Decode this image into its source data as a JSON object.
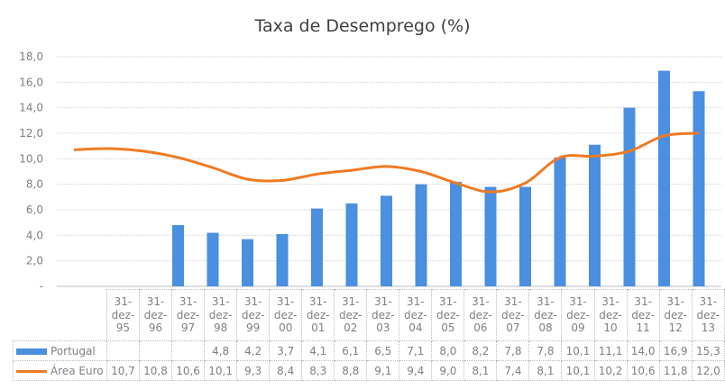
{
  "chart_data": {
    "type": "bar+line",
    "title": "Taxa de Desemprego (%)",
    "categories": [
      "31-dez-95",
      "31-dez-96",
      "31-dez-97",
      "31-dez-98",
      "31-dez-99",
      "31-dez-00",
      "31-dez-01",
      "31-dez-02",
      "31-dez-03",
      "31-dez-04",
      "31-dez-05",
      "31-dez-06",
      "31-dez-07",
      "31-dez-08",
      "31-dez-09",
      "31-dez-10",
      "31-dez-11",
      "31-dez-12",
      "31-dez-13"
    ],
    "series": [
      {
        "name": "Portugal",
        "type": "bar",
        "color": "#4a8fe0",
        "values": [
          null,
          null,
          null,
          4.8,
          4.2,
          3.7,
          4.1,
          6.1,
          6.5,
          7.1,
          8.0,
          8.2,
          7.8,
          7.8,
          10.1,
          11.1,
          14.0,
          16.9,
          15.3
        ],
        "labels": [
          "",
          "",
          "",
          "4,8",
          "4,2",
          "3,7",
          "4,1",
          "6,1",
          "6,5",
          "7,1",
          "8,0",
          "8,2",
          "7,8",
          "7,8",
          "10,1",
          "11,1",
          "14,0",
          "16,9",
          "15,3"
        ]
      },
      {
        "name": "Área Euro",
        "type": "line",
        "color": "#f07a22",
        "values": [
          10.7,
          10.8,
          10.6,
          10.1,
          9.3,
          8.4,
          8.3,
          8.8,
          9.1,
          9.4,
          9.0,
          8.1,
          7.4,
          8.1,
          10.1,
          10.2,
          10.6,
          11.8,
          12.0
        ],
        "labels": [
          "10,7",
          "10,8",
          "10,6",
          "10,1",
          "9,3",
          "8,4",
          "8,3",
          "8,8",
          "9,1",
          "9,4",
          "9,0",
          "8,1",
          "7,4",
          "8,1",
          "10,1",
          "10,2",
          "10,6",
          "11,8",
          "12,0"
        ]
      }
    ],
    "ylim": [
      0,
      18
    ],
    "yticks": [
      "-",
      "2,0",
      "4,0",
      "6,0",
      "8,0",
      "10,0",
      "12,0",
      "14,0",
      "16,0",
      "18,0"
    ],
    "grid": true,
    "legend": "data-table"
  }
}
